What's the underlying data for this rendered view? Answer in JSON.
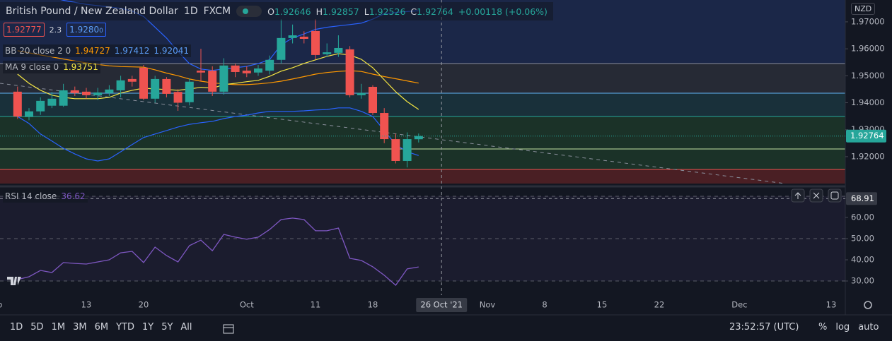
{
  "header": {
    "symbol": "British Pound / New Zealand Dollar",
    "interval": "1D",
    "exchange": "FXCM",
    "ohlc_labels": [
      "O",
      "H",
      "L",
      "C"
    ],
    "change_label": "+0.00118 (+0.06%)",
    "bid": "1.92777",
    "spread": "2.3",
    "ask": "1.9280",
    "ask_suffix": "0",
    "currency": "NZD"
  },
  "chart_data": [
    {
      "type": "candlestick",
      "x": [
        "2021-09-03",
        "2021-09-06",
        "2021-09-07",
        "2021-09-08",
        "2021-09-09",
        "2021-09-10",
        "2021-09-13",
        "2021-09-14",
        "2021-09-15",
        "2021-09-16",
        "2021-09-17",
        "2021-09-20",
        "2021-09-21",
        "2021-09-22",
        "2021-09-23",
        "2021-09-24",
        "2021-09-27",
        "2021-09-28",
        "2021-09-29",
        "2021-09-30",
        "2021-10-01",
        "2021-10-04",
        "2021-10-05",
        "2021-10-06",
        "2021-10-07",
        "2021-10-08",
        "2021-10-11",
        "2021-10-12",
        "2021-10-13",
        "2021-10-14",
        "2021-10-15",
        "2021-10-18",
        "2021-10-19",
        "2021-10-20",
        "2021-10-21",
        "2021-10-22"
      ],
      "open": [
        1.9441,
        1.9347,
        1.9368,
        1.9389,
        1.9389,
        1.9446,
        1.9441,
        1.9428,
        1.9436,
        1.9446,
        1.9488,
        1.953,
        1.9415,
        1.9488,
        1.944,
        1.9402,
        1.9519,
        1.9519,
        1.9441,
        1.9538,
        1.9519,
        1.9512,
        1.9519,
        1.9559,
        1.964,
        1.9645,
        1.9666,
        1.958,
        1.9585,
        1.9598,
        1.9428,
        1.9459,
        1.9362,
        1.9265,
        1.9184,
        1.92646
      ],
      "high": [
        1.946,
        1.938,
        1.942,
        1.944,
        1.947,
        1.946,
        1.9455,
        1.9455,
        1.9465,
        1.95,
        1.95,
        1.954,
        1.95,
        1.9495,
        1.945,
        1.949,
        1.96,
        1.9535,
        1.9565,
        1.9545,
        1.9535,
        1.954,
        1.9575,
        1.971,
        1.969,
        1.9665,
        1.971,
        1.962,
        1.965,
        1.961,
        1.947,
        1.9465,
        1.938,
        1.9285,
        1.929,
        1.92857
      ],
      "low": [
        1.934,
        1.9335,
        1.9355,
        1.938,
        1.9385,
        1.9425,
        1.9415,
        1.941,
        1.9425,
        1.942,
        1.946,
        1.941,
        1.94,
        1.942,
        1.937,
        1.939,
        1.948,
        1.9425,
        1.943,
        1.9495,
        1.9495,
        1.95,
        1.9505,
        1.9545,
        1.962,
        1.962,
        1.956,
        1.957,
        1.957,
        1.942,
        1.9415,
        1.9355,
        1.925,
        1.9175,
        1.916,
        1.92526
      ],
      "close": [
        1.9349,
        1.9368,
        1.9407,
        1.9415,
        1.9446,
        1.9436,
        1.9428,
        1.9438,
        1.9449,
        1.9483,
        1.9478,
        1.9415,
        1.9488,
        1.9433,
        1.94,
        1.9478,
        1.9512,
        1.9441,
        1.9538,
        1.9514,
        1.9509,
        1.9527,
        1.9559,
        1.964,
        1.965,
        1.9637,
        1.9577,
        1.9587,
        1.9603,
        1.9428,
        1.9436,
        1.9362,
        1.9265,
        1.9184,
        1.9265,
        1.92764
      ],
      "up_color": "#26a69a",
      "down_color": "#ef5350",
      "ylim": [
        1.9095,
        1.9781
      ],
      "yticks": [
        {
          "value": 1.97,
          "label": "1.97000"
        },
        {
          "value": 1.96,
          "label": "1.96000"
        },
        {
          "value": 1.95,
          "label": "1.95000"
        },
        {
          "value": 1.94,
          "label": "1.94000"
        },
        {
          "value": 1.93,
          "label": "1.93000"
        },
        {
          "value": 1.92,
          "label": "1.92000"
        }
      ],
      "xticks": [
        {
          "value": "2021-09-01",
          "label": "Sep"
        },
        {
          "value": "2021-09-13",
          "label": "13"
        },
        {
          "value": "2021-09-20",
          "label": "20"
        },
        {
          "value": "2021-10-01",
          "label": "Oct"
        },
        {
          "value": "2021-10-11",
          "label": "11"
        },
        {
          "value": "2021-10-18",
          "label": "18"
        },
        {
          "value": "2021-10-26",
          "label": "26 Oct '21"
        },
        {
          "value": "2021-11-01",
          "label": "Nov"
        },
        {
          "value": "2021-11-08",
          "label": "8"
        },
        {
          "value": "2021-11-15",
          "label": "15"
        },
        {
          "value": "2021-11-22",
          "label": "22"
        },
        {
          "value": "2021-12-01",
          "label": "Dec"
        },
        {
          "value": "2021-12-13",
          "label": "13"
        }
      ],
      "crosshair_tick": 6,
      "indicators": [
        {
          "name": "BB 20 close 2 0",
          "lines": [
            {
              "color": "#ff9800",
              "values": [
                1.9593,
                1.9585,
                1.9577,
                1.957,
                1.9562,
                1.9555,
                1.9548,
                1.9542,
                1.9537,
                1.9534,
                1.9533,
                1.9532,
                1.9522,
                1.951,
                1.95,
                1.9488,
                1.948,
                1.9474,
                1.947,
                1.9467,
                1.9467,
                1.947,
                1.9474,
                1.948,
                1.9488,
                1.9497,
                1.9506,
                1.9512,
                1.9516,
                1.9519,
                1.9516,
                1.9506,
                1.9497,
                1.9489,
                1.9481,
                1.94727
              ]
            },
            {
              "color": "#2962ff",
              "values": [
                1.982,
                1.981,
                1.98,
                1.979,
                1.978,
                1.9772,
                1.9765,
                1.976,
                1.9755,
                1.975,
                1.974,
                1.972,
                1.968,
                1.964,
                1.959,
                1.9545,
                1.9525,
                1.952,
                1.9525,
                1.953,
                1.9535,
                1.9545,
                1.956,
                1.9615,
                1.964,
                1.9655,
                1.9672,
                1.968,
                1.9685,
                1.969,
                1.9695,
                1.971,
                1.973,
                1.9735,
                1.9738,
                1.97412
              ]
            },
            {
              "color": "#2962ff",
              "values": [
                1.9349,
                1.9323,
                1.9284,
                1.9258,
                1.9231,
                1.921,
                1.9192,
                1.9184,
                1.9192,
                1.9218,
                1.9245,
                1.9271,
                1.9284,
                1.9297,
                1.931,
                1.932,
                1.9326,
                1.9331,
                1.9341,
                1.9349,
                1.9354,
                1.9362,
                1.9368,
                1.9368,
                1.9368,
                1.937,
                1.9373,
                1.9375,
                1.9381,
                1.9381,
                1.9368,
                1.9349,
                1.9297,
                1.9245,
                1.9218,
                1.92041
              ]
            }
          ]
        },
        {
          "name": "MA 9 close 0",
          "lines": [
            {
              "color": "#f5e642",
              "values": [
                1.9506,
                1.9472,
                1.9446,
                1.9428,
                1.942,
                1.9415,
                1.9415,
                1.9415,
                1.942,
                1.9436,
                1.9446,
                1.9454,
                1.9451,
                1.9449,
                1.9446,
                1.9451,
                1.9457,
                1.9454,
                1.9467,
                1.9472,
                1.9478,
                1.9483,
                1.9498,
                1.9517,
                1.953,
                1.9546,
                1.9559,
                1.9572,
                1.9582,
                1.9577,
                1.9561,
                1.953,
                1.9485,
                1.9441,
                1.9404,
                1.93751
              ]
            }
          ]
        }
      ]
    },
    {
      "type": "line",
      "title": "RSI 14 close",
      "series": [
        {
          "color": "#7e57c2",
          "values": [
            30.7,
            32.0,
            35.0,
            34.0,
            38.7,
            38.3,
            38.0,
            39.0,
            40.0,
            43.3,
            44.0,
            38.7,
            46.0,
            42.0,
            39.0,
            46.7,
            49.3,
            44.3,
            52.0,
            50.7,
            49.7,
            50.7,
            54.3,
            59.0,
            59.7,
            59.0,
            53.7,
            53.7,
            55.0,
            40.7,
            39.7,
            36.7,
            32.7,
            28.0,
            35.7,
            36.62
          ]
        }
      ],
      "ylim": [
        23.33,
        73.33
      ],
      "yticks": [
        {
          "value": 60,
          "label": "60.00"
        },
        {
          "value": 50,
          "label": "50.00"
        },
        {
          "value": 40,
          "label": "40.00"
        },
        {
          "value": 30,
          "label": "30.00"
        }
      ],
      "levels": [
        70,
        50,
        30
      ],
      "crosshair_value": 68.91
    }
  ],
  "toolbar": {
    "ranges": [
      "1D",
      "5D",
      "1M",
      "3M",
      "6M",
      "YTD",
      "1Y",
      "5Y",
      "All"
    ],
    "clock": "23:52:57 (UTC)",
    "options": [
      "%",
      "log",
      "auto"
    ]
  }
}
